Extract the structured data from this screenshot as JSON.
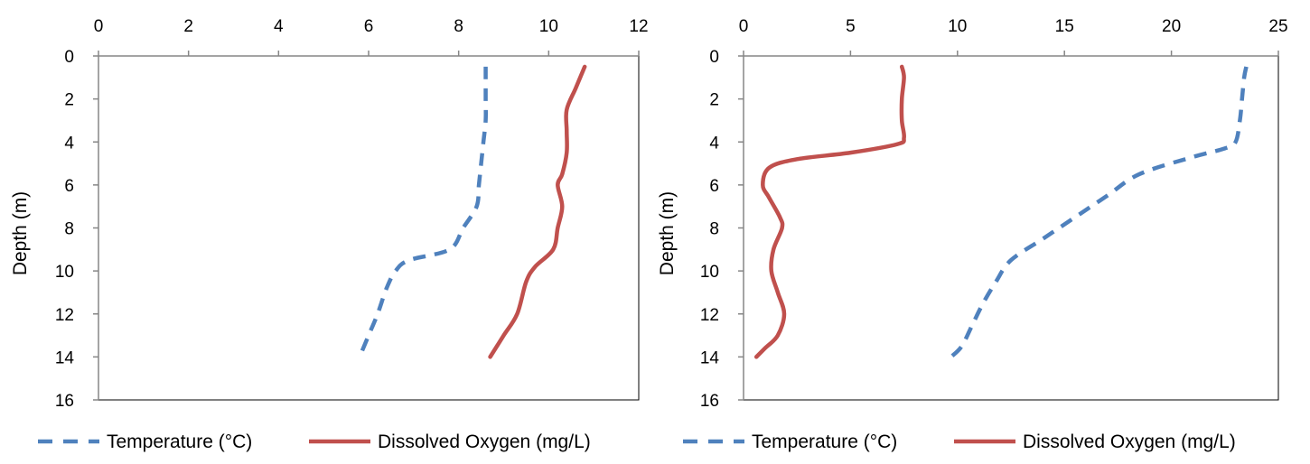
{
  "colors": {
    "temperature": "#4F81BD",
    "oxygen": "#C0504D",
    "axis": "#868686",
    "frame": "#000000"
  },
  "chart_data": [
    {
      "type": "line",
      "title": "",
      "xlabel": "",
      "ylabel": "Depth (m)",
      "xlim": [
        0,
        12
      ],
      "ylim": [
        0,
        16
      ],
      "x_axis_position": "top",
      "y_axis_inverted": true,
      "grid": false,
      "x_ticks": [
        "0",
        "2",
        "4",
        "6",
        "8",
        "10",
        "12"
      ],
      "y_ticks": [
        "0",
        "2",
        "4",
        "6",
        "8",
        "10",
        "12",
        "14",
        "16"
      ],
      "legend_position": "bottom",
      "series": [
        {
          "name": "Temperature (°C)",
          "style": "dashed",
          "points": [
            [
              8.6,
              0.5
            ],
            [
              8.6,
              1
            ],
            [
              8.6,
              2
            ],
            [
              8.6,
              3
            ],
            [
              8.55,
              4
            ],
            [
              8.5,
              5
            ],
            [
              8.45,
              6
            ],
            [
              8.4,
              7
            ],
            [
              8.1,
              8
            ],
            [
              7.8,
              9
            ],
            [
              6.9,
              9.5
            ],
            [
              6.6,
              10
            ],
            [
              6.4,
              10.8
            ],
            [
              6.2,
              12
            ],
            [
              6.0,
              13
            ],
            [
              5.8,
              14
            ]
          ]
        },
        {
          "name": "Dissolved Oxygen (mg/L)",
          "style": "solid",
          "points": [
            [
              10.8,
              0.5
            ],
            [
              10.6,
              1.5
            ],
            [
              10.4,
              2.5
            ],
            [
              10.4,
              3.5
            ],
            [
              10.4,
              4.5
            ],
            [
              10.3,
              5.5
            ],
            [
              10.2,
              6
            ],
            [
              10.3,
              7
            ],
            [
              10.2,
              8
            ],
            [
              10.1,
              9
            ],
            [
              9.7,
              9.8
            ],
            [
              9.5,
              10.5
            ],
            [
              9.3,
              12
            ],
            [
              9.0,
              13
            ],
            [
              8.7,
              14
            ]
          ]
        }
      ]
    },
    {
      "type": "line",
      "title": "",
      "xlabel": "",
      "ylabel": "Depth (m)",
      "xlim": [
        0,
        25
      ],
      "ylim": [
        0,
        16
      ],
      "x_axis_position": "top",
      "y_axis_inverted": true,
      "grid": false,
      "x_ticks": [
        "0",
        "5",
        "10",
        "15",
        "20",
        "25"
      ],
      "y_ticks": [
        "0",
        "2",
        "4",
        "6",
        "8",
        "10",
        "12",
        "14",
        "16"
      ],
      "legend_position": "bottom",
      "series": [
        {
          "name": "Temperature (°C)",
          "style": "dashed",
          "points": [
            [
              23.5,
              0.5
            ],
            [
              23.4,
              1
            ],
            [
              23.3,
              2
            ],
            [
              23.2,
              3
            ],
            [
              23.0,
              4
            ],
            [
              22.5,
              4.3
            ],
            [
              21.0,
              4.7
            ],
            [
              18.5,
              5.5
            ],
            [
              17.0,
              6.5
            ],
            [
              15.5,
              7.5
            ],
            [
              14.0,
              8.5
            ],
            [
              12.5,
              9.5
            ],
            [
              11.8,
              10.5
            ],
            [
              11.2,
              11.5
            ],
            [
              10.7,
              12.5
            ],
            [
              10.2,
              13.5
            ],
            [
              9.7,
              14
            ]
          ]
        },
        {
          "name": "Dissolved Oxygen (mg/L)",
          "style": "solid",
          "points": [
            [
              7.4,
              0.5
            ],
            [
              7.5,
              1
            ],
            [
              7.4,
              2
            ],
            [
              7.4,
              3
            ],
            [
              7.5,
              3.8
            ],
            [
              7.2,
              4.1
            ],
            [
              5.0,
              4.5
            ],
            [
              2.5,
              4.8
            ],
            [
              1.2,
              5.2
            ],
            [
              0.9,
              6
            ],
            [
              1.2,
              6.6
            ],
            [
              1.7,
              7.5
            ],
            [
              1.8,
              8
            ],
            [
              1.4,
              9
            ],
            [
              1.3,
              10
            ],
            [
              1.6,
              11
            ],
            [
              1.9,
              12
            ],
            [
              1.6,
              13
            ],
            [
              1.0,
              13.6
            ],
            [
              0.6,
              14
            ]
          ]
        }
      ]
    }
  ]
}
